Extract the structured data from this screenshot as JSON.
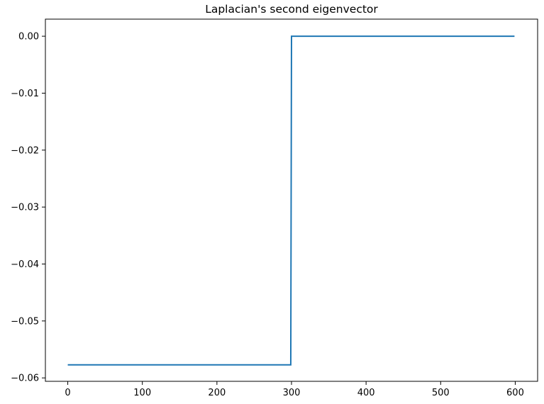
{
  "chart_data": {
    "type": "line",
    "title": "Laplacian's second eigenvector",
    "xlabel": "",
    "ylabel": "",
    "xlim": [
      -30,
      630
    ],
    "ylim": [
      -0.0606,
      0.003
    ],
    "grid": false,
    "legend": "none",
    "xticks": [
      0,
      100,
      200,
      300,
      400,
      500,
      600
    ],
    "xtick_labels": [
      "0",
      "100",
      "200",
      "300",
      "400",
      "500",
      "600"
    ],
    "yticks": [
      0.0,
      -0.01,
      -0.02,
      -0.03,
      -0.04,
      -0.05,
      -0.06
    ],
    "ytick_labels": [
      "0.00",
      "−0.01",
      "−0.02",
      "−0.03",
      "−0.04",
      "−0.05",
      "−0.06"
    ],
    "series": [
      {
        "color": "#1f77b4",
        "x": [
          0,
          299,
          300,
          599
        ],
        "y": [
          -0.0577,
          -0.0577,
          0.0,
          0.0
        ]
      }
    ]
  }
}
